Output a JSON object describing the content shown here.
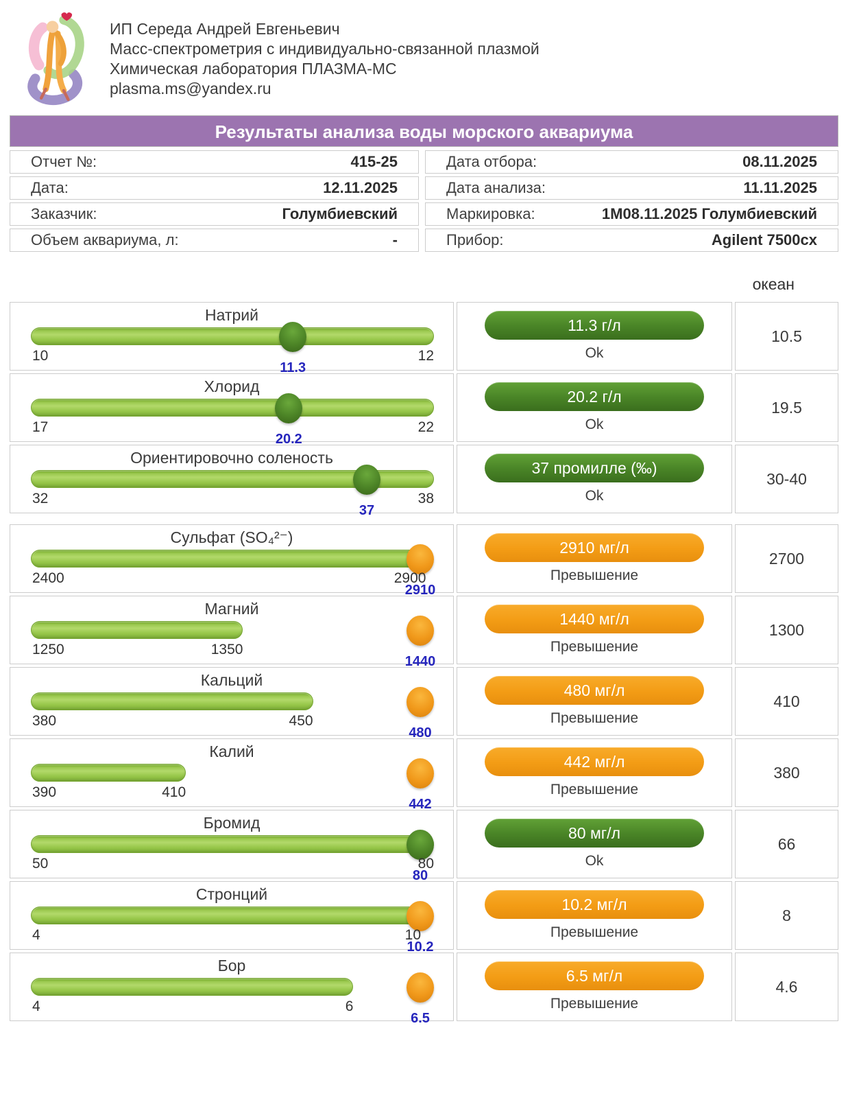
{
  "company": {
    "lines": [
      "ИП Середа Андрей Евгеньевич",
      "Масс-спектрометрия с индивидуально-связанной плазмой",
      "Химическая лаборатория ПЛАЗМА-МС",
      "plasma.ms@yandex.ru"
    ]
  },
  "banner": {
    "title": "Результаты анализа воды морского аквариума"
  },
  "info": {
    "rows": [
      {
        "left_label": "Отчет №:",
        "left_value": "415-25",
        "right_label": "Дата отбора:",
        "right_value": "08.11.2025"
      },
      {
        "left_label": "Дата:",
        "left_value": "12.11.2025",
        "right_label": "Дата анализа:",
        "right_value": "11.11.2025"
      },
      {
        "left_label": "Заказчик:",
        "left_value": "Голумбиевский",
        "right_label": "Маркировка:",
        "right_value": "1М08.11.2025 Голумбиевский"
      },
      {
        "left_label": "Объем аквариума, л:",
        "left_value": "-",
        "right_label": "Прибор:",
        "right_value": "Agilent 7500cx"
      }
    ]
  },
  "ocean_header": "океан",
  "colors": {
    "banner_purple": "#9c74b0",
    "ok_green": "#4a8527",
    "exceed_orange": "#f39c15",
    "bar_green": "#96c649",
    "value_blue": "#2626bd"
  },
  "groups": [
    {
      "rows": [
        {
          "name": "Натрий",
          "min": 10,
          "max": 12,
          "value": 11.3,
          "min_label": "10",
          "max_label": "12",
          "value_label": "11.3",
          "badge_label": "11.3 г/л",
          "status_label": "Ok",
          "state": "ok",
          "ocean": "10.5"
        },
        {
          "name": "Хлорид",
          "min": 17,
          "max": 22,
          "value": 20.2,
          "min_label": "17",
          "max_label": "22",
          "value_label": "20.2",
          "badge_label": "20.2 г/л",
          "status_label": "Ok",
          "state": "ok",
          "ocean": "19.5"
        },
        {
          "name": "Ориентировочно соленость",
          "min": 32,
          "max": 38,
          "value": 37,
          "min_label": "32",
          "max_label": "38",
          "value_label": "37",
          "badge_label": "37 промилле (‰)",
          "status_label": "Ok",
          "state": "ok",
          "ocean": "30-40"
        }
      ]
    },
    {
      "rows": [
        {
          "name": "Сульфат (SO₄²⁻)",
          "min": 2400,
          "max": 2900,
          "value": 2910,
          "min_label": "2400",
          "max_label": "2900",
          "value_label": "2910",
          "badge_label": "2910 мг/л",
          "status_label": "Превышение",
          "state": "exceed",
          "ocean": "2700"
        },
        {
          "name": "Магний",
          "min": 1250,
          "max": 1350,
          "value": 1440,
          "min_label": "1250",
          "max_label": "1350",
          "value_label": "1440",
          "badge_label": "1440 мг/л",
          "status_label": "Превышение",
          "state": "exceed",
          "ocean": "1300"
        },
        {
          "name": "Кальций",
          "min": 380,
          "max": 450,
          "value": 480,
          "min_label": "380",
          "max_label": "450",
          "value_label": "480",
          "badge_label": "480 мг/л",
          "status_label": "Превышение",
          "state": "exceed",
          "ocean": "410"
        },
        {
          "name": "Калий",
          "min": 390,
          "max": 410,
          "value": 442,
          "min_label": "390",
          "max_label": "410",
          "value_label": "442",
          "badge_label": "442 мг/л",
          "status_label": "Превышение",
          "state": "exceed",
          "ocean": "380"
        },
        {
          "name": "Бромид",
          "min": 50,
          "max": 80,
          "value": 80,
          "min_label": "50",
          "max_label": "80",
          "value_label": "80",
          "badge_label": "80 мг/л",
          "status_label": "Ok",
          "state": "ok",
          "ocean": "66"
        },
        {
          "name": "Стронций",
          "min": 4,
          "max": 10,
          "value": 10.2,
          "min_label": "4",
          "max_label": "10",
          "value_label": "10.2",
          "badge_label": "10.2 мг/л",
          "status_label": "Превышение",
          "state": "exceed",
          "ocean": "8"
        },
        {
          "name": "Бор",
          "min": 4,
          "max": 6,
          "value": 6.5,
          "min_label": "4",
          "max_label": "6",
          "value_label": "6.5",
          "badge_label": "6.5 мг/л",
          "status_label": "Превышение",
          "state": "exceed",
          "ocean": "4.6"
        }
      ]
    }
  ]
}
